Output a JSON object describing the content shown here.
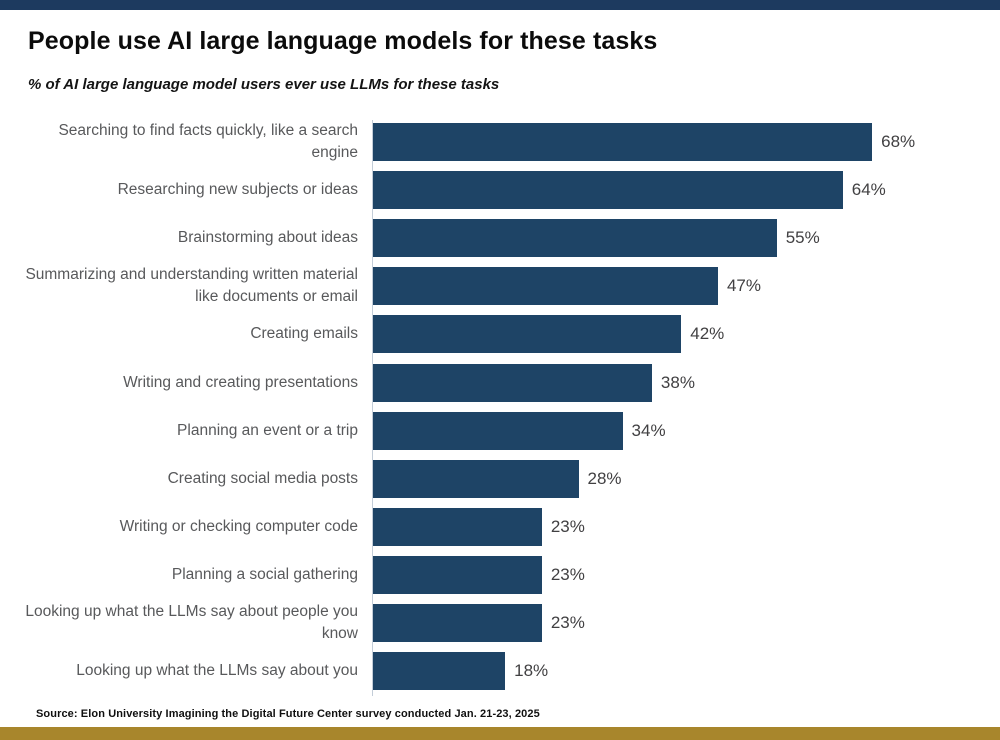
{
  "page": {
    "title": "People use AI large language models for these tasks",
    "subtitle": "% of AI large language model users ever use LLMs for these tasks",
    "source": "Source: Elon University Imagining the Digital Future Center survey conducted Jan. 21-23, 2025"
  },
  "colors": {
    "top_accent": "#1d3a5f",
    "bottom_accent": "#a8862c",
    "bar": "#1e4466",
    "category_label_text": "#58595b",
    "value_label_text": "#414042"
  },
  "chart_data": {
    "type": "bar",
    "orientation": "horizontal",
    "title": "People use AI large language models for these tasks",
    "subtitle": "% of AI large language model users ever use LLMs for these tasks",
    "xlabel": "",
    "ylabel": "",
    "xlim": [
      0,
      100
    ],
    "grid": false,
    "legend": false,
    "value_suffix": "%",
    "categories": [
      "Searching to find facts quickly, like a search engine",
      "Researching new subjects or ideas",
      "Brainstorming about ideas",
      "Summarizing and understanding written material like documents or email",
      "Creating emails",
      "Writing and creating presentations",
      "Planning an event or a trip",
      "Creating social media posts",
      "Writing or checking computer code",
      "Planning a social gathering",
      "Looking up what the LLMs say about people you know",
      "Looking up what the LLMs say about you"
    ],
    "values": [
      68,
      64,
      55,
      47,
      42,
      38,
      34,
      28,
      23,
      23,
      23,
      18
    ]
  }
}
